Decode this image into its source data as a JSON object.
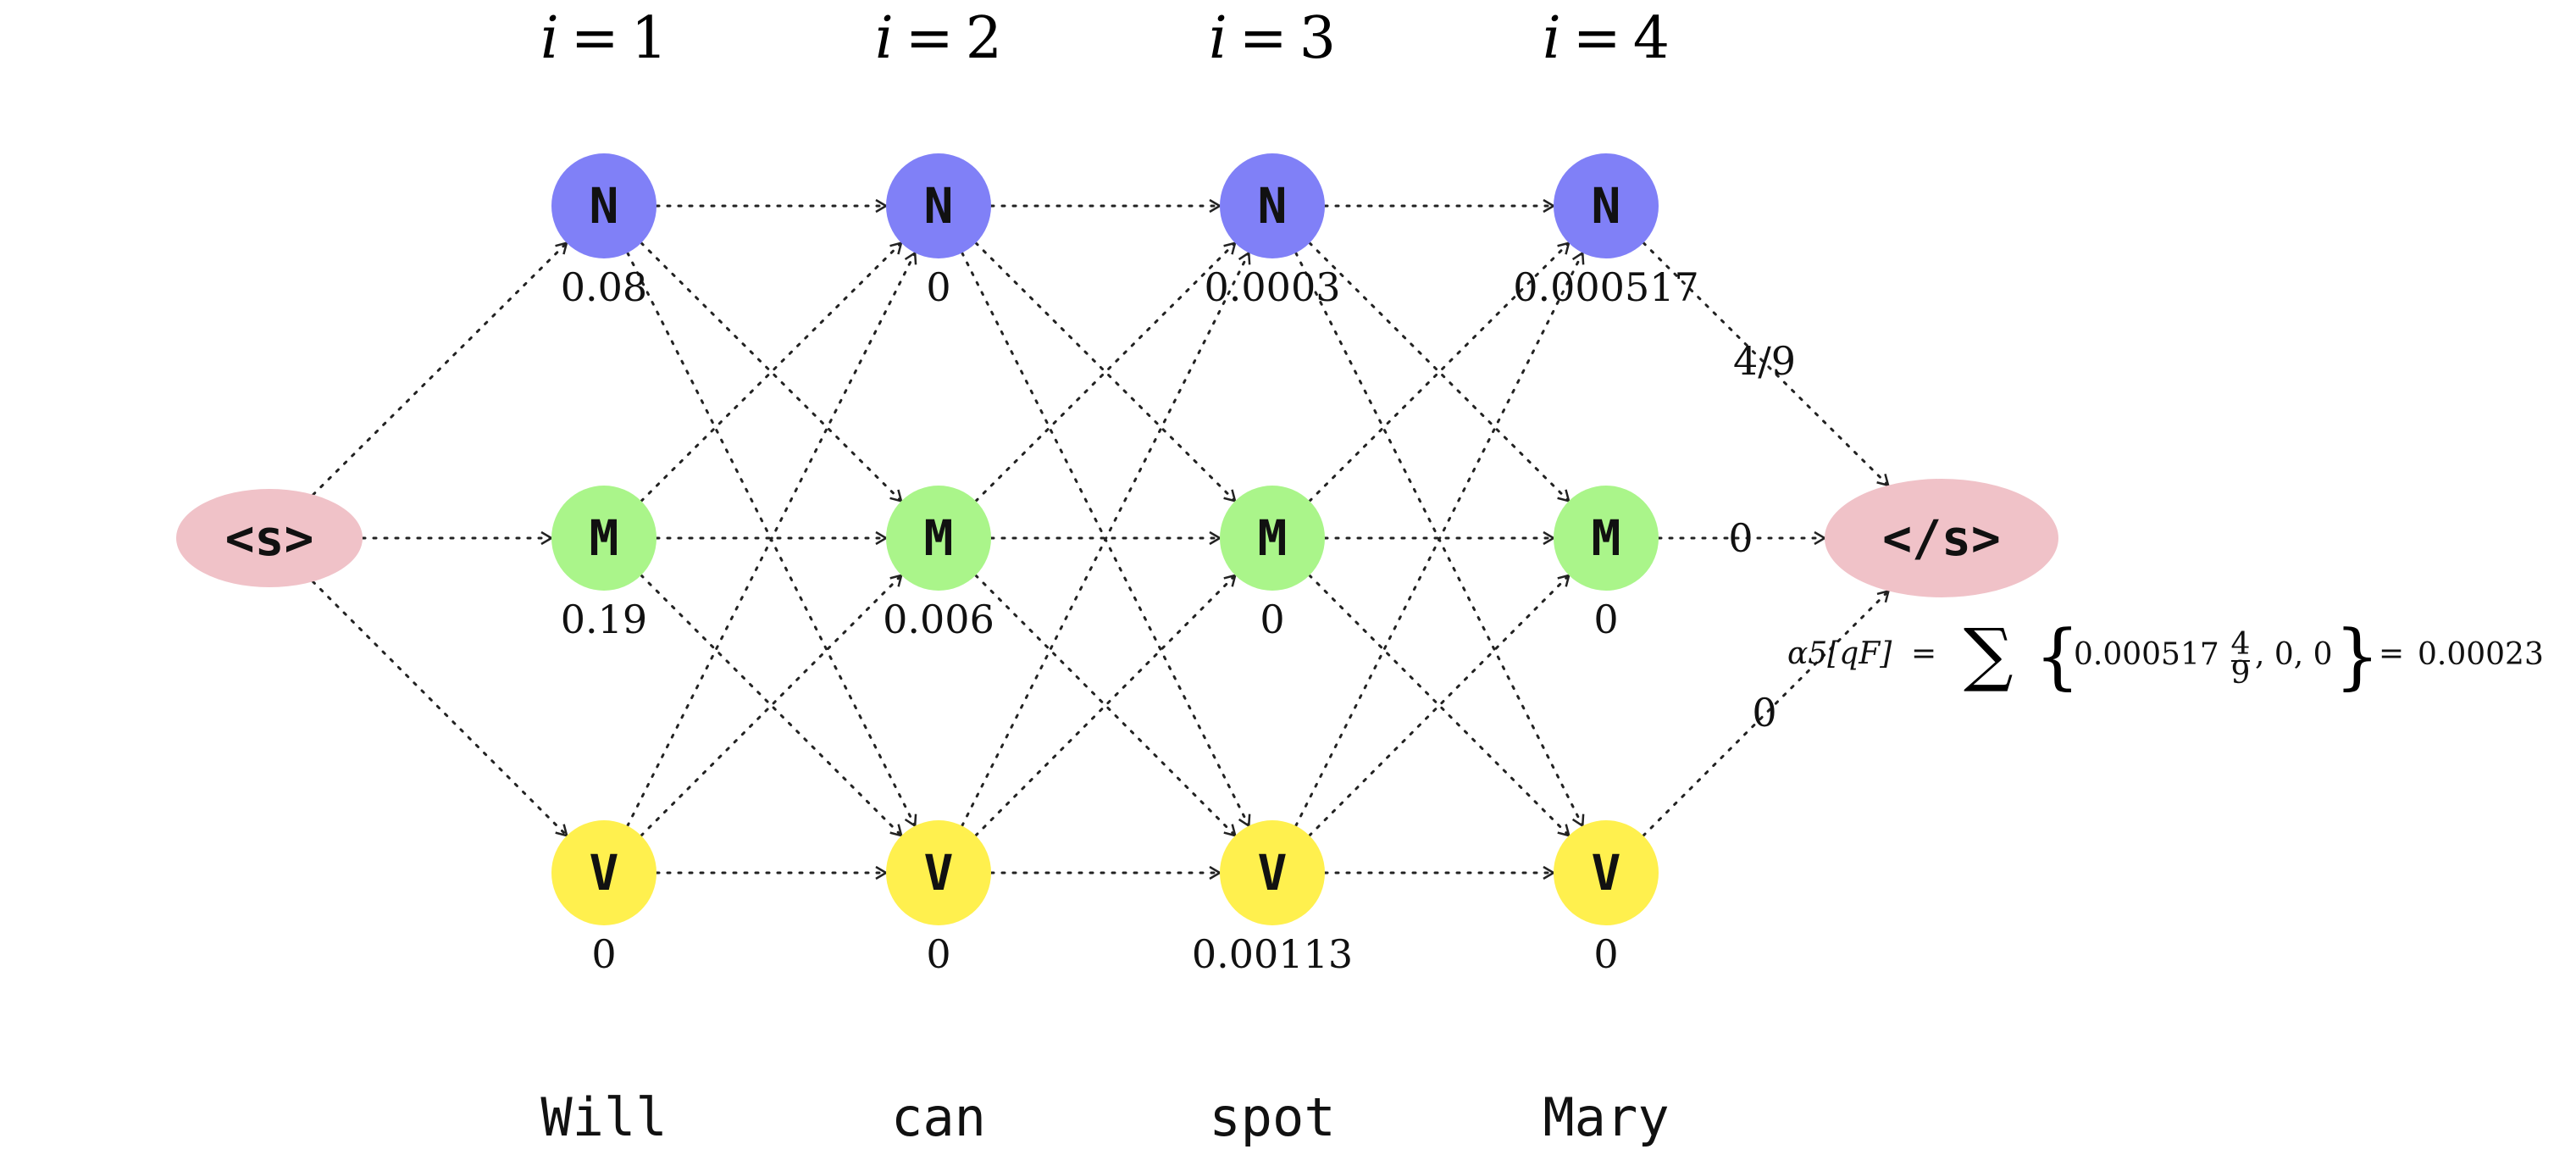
{
  "colors": {
    "N": "#8080f7",
    "M": "#aaf58a",
    "V": "#fff04e",
    "boundary": "#f0c2c8"
  },
  "headers": [
    {
      "var": "i",
      "eq": "=",
      "num": "1"
    },
    {
      "var": "i",
      "eq": "=",
      "num": "2"
    },
    {
      "var": "i",
      "eq": "=",
      "num": "3"
    },
    {
      "var": "i",
      "eq": "=",
      "num": "4"
    }
  ],
  "start": {
    "label": "<s>"
  },
  "end": {
    "label": "</s>"
  },
  "states": [
    "N",
    "M",
    "V"
  ],
  "columns": [
    {
      "word": "Will",
      "values": {
        "N": "0.08",
        "M": "0.19",
        "V": "0"
      }
    },
    {
      "word": "can",
      "values": {
        "N": "0",
        "M": "0.006",
        "V": "0"
      }
    },
    {
      "word": "spot",
      "values": {
        "N": "0.0003",
        "M": "0",
        "V": "0.00113"
      }
    },
    {
      "word": "Mary",
      "values": {
        "N": "0.000517",
        "M": "0",
        "V": "0"
      }
    }
  ],
  "final_edges": {
    "N": "4/9",
    "M": "0",
    "V": "0"
  },
  "formula": {
    "lhs": "α5[qF]",
    "equals": "=",
    "sum": "∑",
    "open": "{",
    "term1": "0.000517",
    "frac_num": "4",
    "frac_den": "9",
    "rest": ", 0, 0",
    "close": "}",
    "equals2": "=",
    "result": "0.00023"
  }
}
